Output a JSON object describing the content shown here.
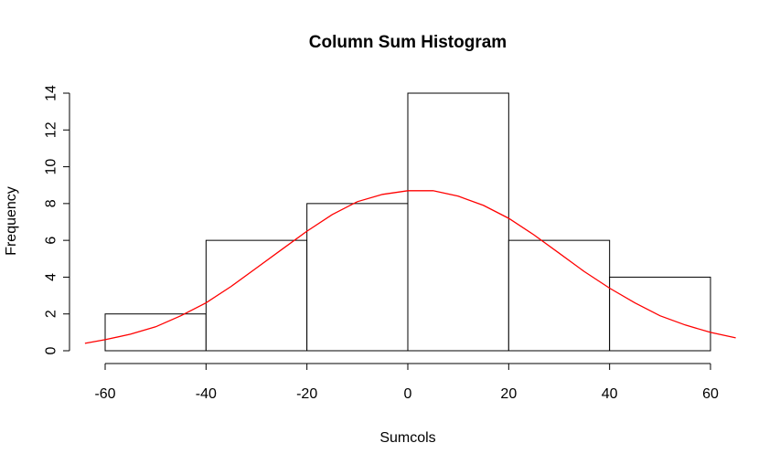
{
  "chart_data": {
    "type": "bar",
    "subtype": "histogram",
    "title": "Column Sum Histogram",
    "xlabel": "Sumcols",
    "ylabel": "Frequency",
    "bins": [
      {
        "from": -60,
        "to": -40,
        "count": 2
      },
      {
        "from": -40,
        "to": -20,
        "count": 6
      },
      {
        "from": -20,
        "to": 0,
        "count": 8
      },
      {
        "from": 0,
        "to": 20,
        "count": 14
      },
      {
        "from": 20,
        "to": 40,
        "count": 6
      },
      {
        "from": 40,
        "to": 60,
        "count": 4
      }
    ],
    "x_ticks": [
      -60,
      -40,
      -20,
      0,
      20,
      40,
      60
    ],
    "y_ticks": [
      0,
      2,
      4,
      6,
      8,
      10,
      12,
      14
    ],
    "xlim": [
      -64,
      65
    ],
    "ylim": [
      0,
      14
    ],
    "density_curve": {
      "color": "#ff0000",
      "x": [
        -64,
        -60,
        -55,
        -50,
        -45,
        -40,
        -35,
        -30,
        -25,
        -20,
        -15,
        -10,
        -5,
        0,
        5,
        10,
        15,
        20,
        25,
        30,
        35,
        40,
        45,
        50,
        55,
        60,
        65
      ],
      "y": [
        0.4,
        0.6,
        0.9,
        1.3,
        1.9,
        2.6,
        3.5,
        4.5,
        5.5,
        6.5,
        7.4,
        8.1,
        8.5,
        8.7,
        8.7,
        8.4,
        7.9,
        7.2,
        6.3,
        5.3,
        4.3,
        3.4,
        2.6,
        1.9,
        1.4,
        1.0,
        0.7
      ]
    },
    "grid": false,
    "legend": "none"
  }
}
